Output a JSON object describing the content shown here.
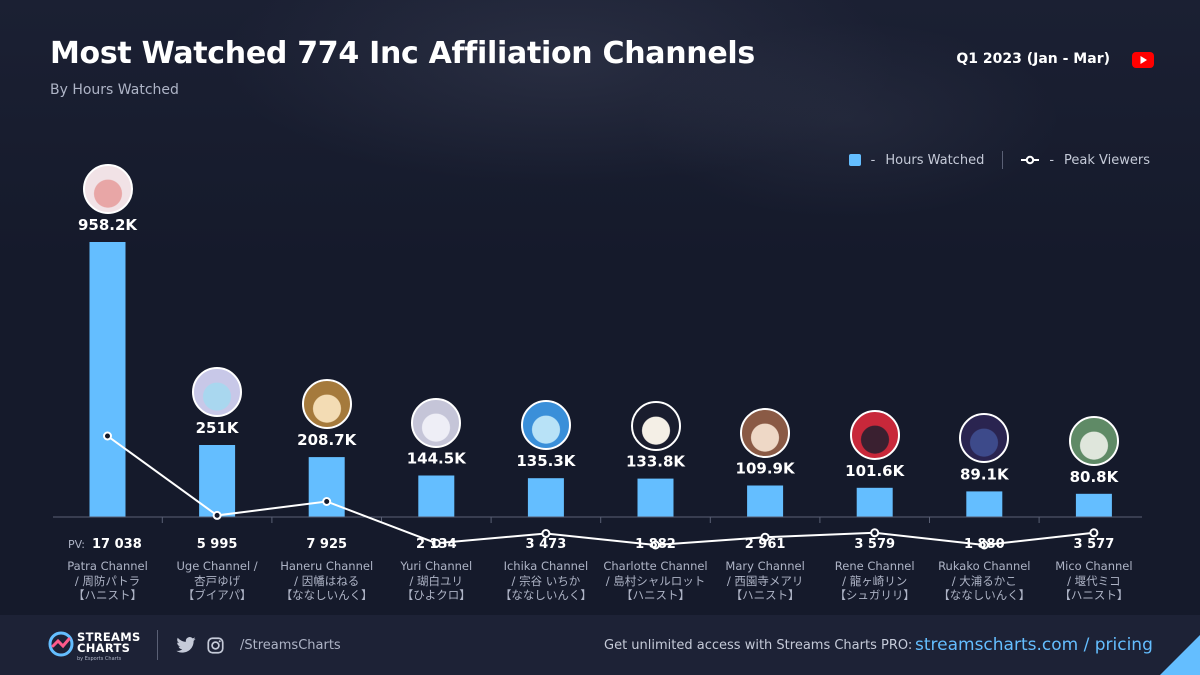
{
  "header": {
    "title": "Most Watched 774 Inc Affiliation Channels",
    "subtitle": "By Hours Watched",
    "period": "Q1 2023 (Jan - Mar)"
  },
  "legend": {
    "hours_label": "Hours Watched",
    "peak_label": "Peak Viewers",
    "dash": "-"
  },
  "pv_label": "PV:",
  "chart_data": {
    "type": "bar",
    "title": "Most Watched 774 Inc Affiliation Channels",
    "subtitle": "By Hours Watched",
    "categories": [
      "Patra Channel / 周防パトラ【ハニスト】",
      "Uge Channel / 杏戸ゆげ【ブイアパ】",
      "Haneru Channel / 因幡はねる【ななしいんく】",
      "Yuri Channel / 瑚白ユリ【ひよクロ】",
      "Ichika Channel / 宗谷 いちか【ななしいんく】",
      "Charlotte Channel / 島村シャルロット【ハニスト】",
      "Mary Channel / 西園寺メアリ【ハニスト】",
      "Rene Channel / 龍ヶ崎リン【シュガリリ】",
      "Rukako Channel / 大浦るかこ【ななしいんく】",
      "Mico Channel / 堰代ミコ【ハニスト】"
    ],
    "series": [
      {
        "name": "Hours Watched",
        "type": "bar",
        "values": [
          958200,
          251000,
          208700,
          144500,
          135300,
          133800,
          109900,
          101600,
          89100,
          80800
        ],
        "labels": [
          "958.2K",
          "251K",
          "208.7K",
          "144.5K",
          "135.3K",
          "133.8K",
          "109.9K",
          "101.6K",
          "89.1K",
          "80.8K"
        ],
        "color": "#64beff"
      },
      {
        "name": "Peak Viewers",
        "type": "line",
        "values": [
          17038,
          5995,
          7925,
          2134,
          3473,
          1882,
          2961,
          3579,
          1880,
          3577
        ],
        "labels": [
          "17 038",
          "5 995",
          "7 925",
          "2 134",
          "3 473",
          "1 882",
          "2 961",
          "3 579",
          "1 880",
          "3 577"
        ],
        "color": "#ffffff"
      }
    ],
    "ylim": [
      0,
      958200
    ],
    "grid": true,
    "legend": "top-right"
  },
  "channels": [
    {
      "line1": "Patra Channel",
      "line2": "/ 周防パトラ",
      "line3": "【ハニスト】",
      "avatar_color": "#e8a6a6",
      "avatar_hair": "#f1e2e6"
    },
    {
      "line1": "Uge Channel /",
      "line2": "杏戸ゆげ",
      "line3": "【ブイアパ】",
      "avatar_color": "#a9d7ef",
      "avatar_hair": "#c8c8e8"
    },
    {
      "line1": "Haneru Channel",
      "line2": "/ 因幡はねる",
      "line3": "【ななしいんく】",
      "avatar_color": "#f3dcb4",
      "avatar_hair": "#a57a3c"
    },
    {
      "line1": "Yuri Channel",
      "line2": "/ 瑚白ユリ",
      "line3": "【ひよクロ】",
      "avatar_color": "#eeeef6",
      "avatar_hair": "#c5c5d8"
    },
    {
      "line1": "Ichika Channel",
      "line2": "/ 宗谷 いちか",
      "line3": "【ななしいんく】",
      "avatar_color": "#b8e2f7",
      "avatar_hair": "#3a8fd9"
    },
    {
      "line1": "Charlotte Channel",
      "line2": "/ 島村シャルロット",
      "line3": "【ハニスト】",
      "avatar_color": "#f4efe6",
      "avatar_hair": "#1a1d2e"
    },
    {
      "line1": "Mary Channel",
      "line2": "/ 西園寺メアリ",
      "line3": "【ハニスト】",
      "avatar_color": "#eed8c6",
      "avatar_hair": "#8a5a45"
    },
    {
      "line1": "Rene Channel",
      "line2": "/ 龍ヶ崎リン",
      "line3": "【シュガリリ】",
      "avatar_color": "#3a2030",
      "avatar_hair": "#c8283a"
    },
    {
      "line1": "Rukako Channel",
      "line2": "/ 大浦るかこ",
      "line3": "【ななしいんく】",
      "avatar_color": "#3d4a8a",
      "avatar_hair": "#2a2450"
    },
    {
      "line1": "Mico Channel",
      "line2": "/ 堰代ミコ",
      "line3": "【ハニスト】",
      "avatar_color": "#dfe6dc",
      "avatar_hair": "#5f8a66"
    }
  ],
  "footer": {
    "brand_line1": "STREAMS",
    "brand_line2": "CHARTS",
    "brand_sub": "by Esports Charts",
    "handle": "/StreamsCharts",
    "promo": "Get unlimited access with Streams Charts PRO:",
    "link": "streamscharts.com / pricing"
  },
  "colors": {
    "background": "#151a2b",
    "bar": "#64beff",
    "line": "#ffffff",
    "footer": "#1d2236",
    "youtube": "#ff0000"
  }
}
